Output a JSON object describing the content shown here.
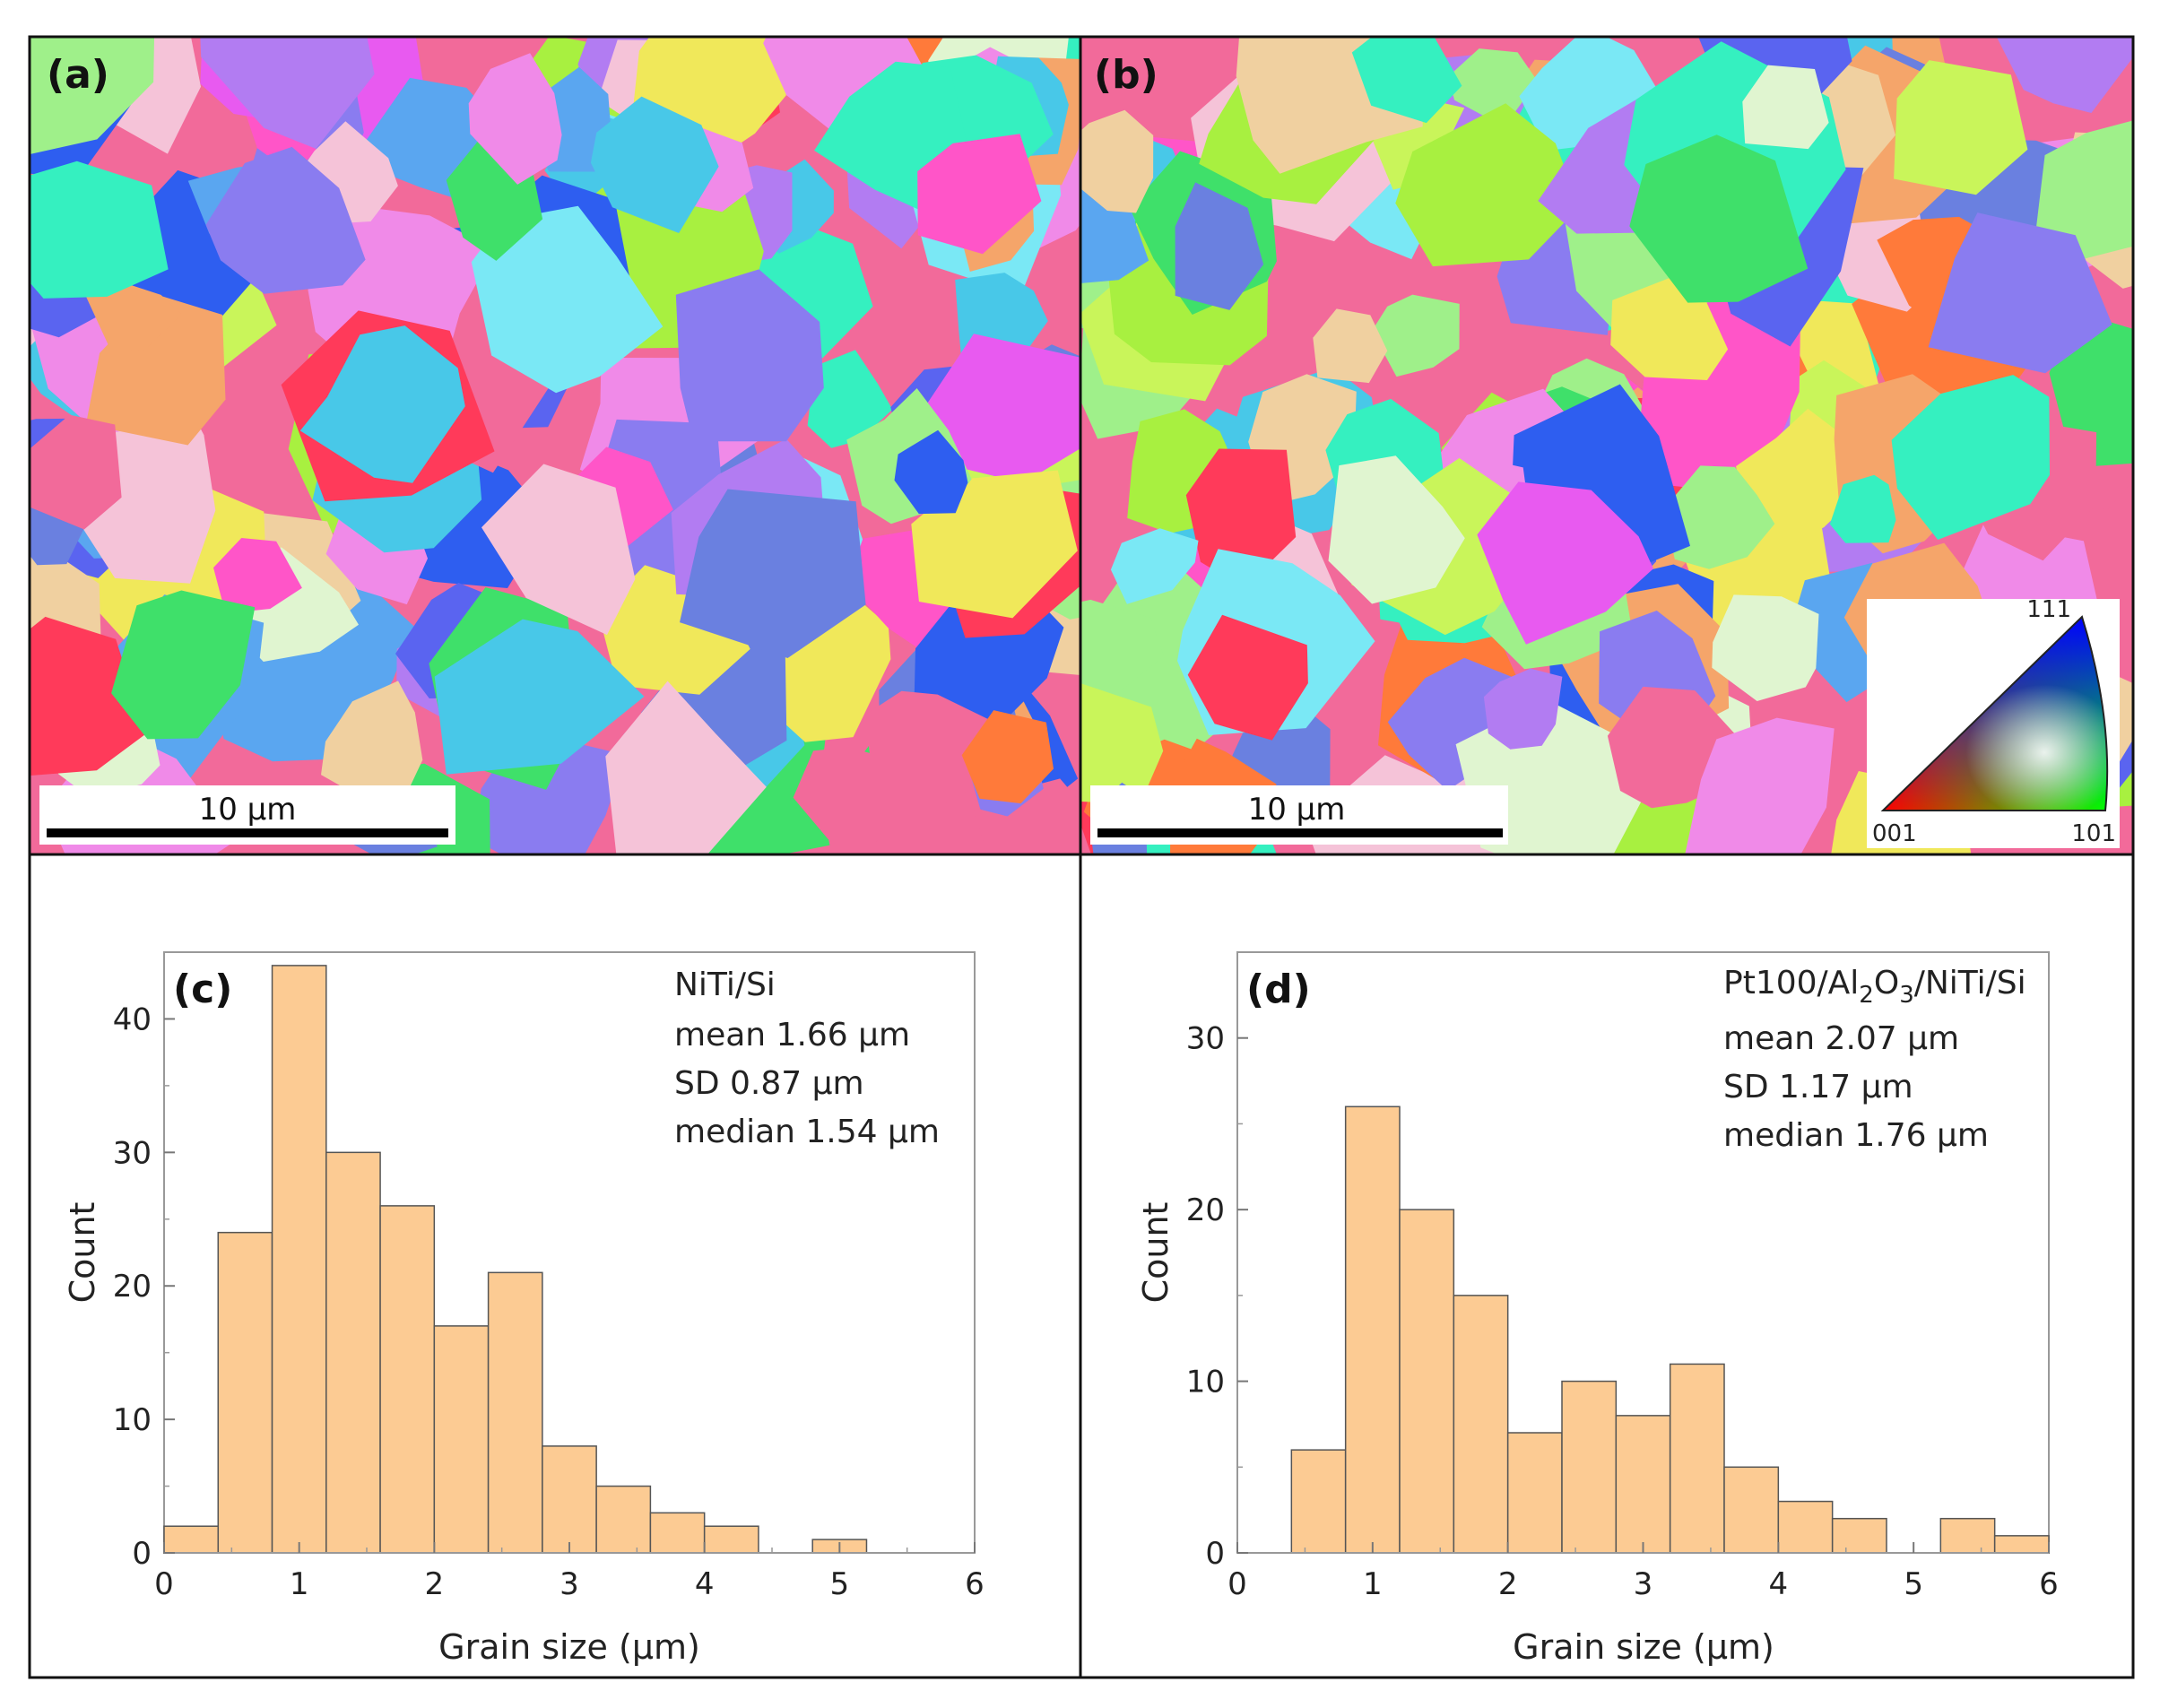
{
  "panels": {
    "a": {
      "label": "(a)",
      "scalebar": "10 µm"
    },
    "b": {
      "label": "(b)",
      "scalebar": "10 µm"
    }
  },
  "ipf_legend": {
    "top": "111",
    "left": "001",
    "right": "101"
  },
  "palette": [
    "#f26a9a",
    "#5aa6f0",
    "#9ff08a",
    "#b27cf2",
    "#f0e85a",
    "#3fe06a",
    "#ff7a3a",
    "#7ae8f5",
    "#e85af0",
    "#5a64f0",
    "#f5c3d8",
    "#35f0c0",
    "#ff3a5a",
    "#c9f55a",
    "#8a7cf0",
    "#f5a56a",
    "#48c8e8",
    "#e0f5d0",
    "#ff55c8",
    "#6a80e0",
    "#a8f040",
    "#f0d0a0",
    "#2e5ef0",
    "#f08ae8"
  ],
  "chart_data": [
    {
      "type": "bar",
      "panel_label": "(c)",
      "title": "",
      "sample": "NiTi/Si",
      "stats": [
        "mean 1.66 µm",
        "SD 0.87 µm",
        "median 1.54 µm"
      ],
      "bin_width": 0.4,
      "bin_starts": [
        0,
        0.4,
        0.8,
        1.2,
        1.6,
        2.0,
        2.4,
        2.8,
        3.2,
        3.6,
        4.0,
        4.4,
        4.8,
        5.2,
        5.6
      ],
      "values": [
        2,
        24,
        44,
        30,
        26,
        17,
        21,
        8,
        5,
        3,
        2,
        0,
        1,
        0,
        0
      ],
      "xlabel": "Grain size (µm)",
      "ylabel": "Count",
      "xlim": [
        0,
        6
      ],
      "ylim": [
        0,
        45
      ],
      "xticks": [
        0,
        1,
        2,
        3,
        4,
        5,
        6
      ],
      "yticks": [
        0,
        10,
        20,
        30,
        40
      ],
      "bar_color": "#fccb93",
      "edge_color": "#555555"
    },
    {
      "type": "bar",
      "panel_label": "(d)",
      "title": "",
      "sample_parts": [
        "Pt100/Al",
        "2",
        "O",
        "3",
        "/NiTi/Si"
      ],
      "stats": [
        "mean 2.07 µm",
        "SD 1.17 µm",
        "median 1.76 µm"
      ],
      "bin_width": 0.4,
      "bin_starts": [
        0,
        0.4,
        0.8,
        1.2,
        1.6,
        2.0,
        2.4,
        2.8,
        3.2,
        3.6,
        4.0,
        4.4,
        4.8,
        5.2,
        5.6
      ],
      "values": [
        0,
        6,
        26,
        20,
        15,
        7,
        10,
        8,
        11,
        5,
        3,
        2,
        0,
        2,
        1
      ],
      "xlabel": "Grain size (µm)",
      "ylabel": "Count",
      "xlim": [
        0,
        6
      ],
      "ylim": [
        0,
        35
      ],
      "xticks": [
        0,
        1,
        2,
        3,
        4,
        5,
        6
      ],
      "yticks": [
        0,
        10,
        20,
        30
      ],
      "bar_color": "#fccb93",
      "edge_color": "#555555"
    }
  ]
}
